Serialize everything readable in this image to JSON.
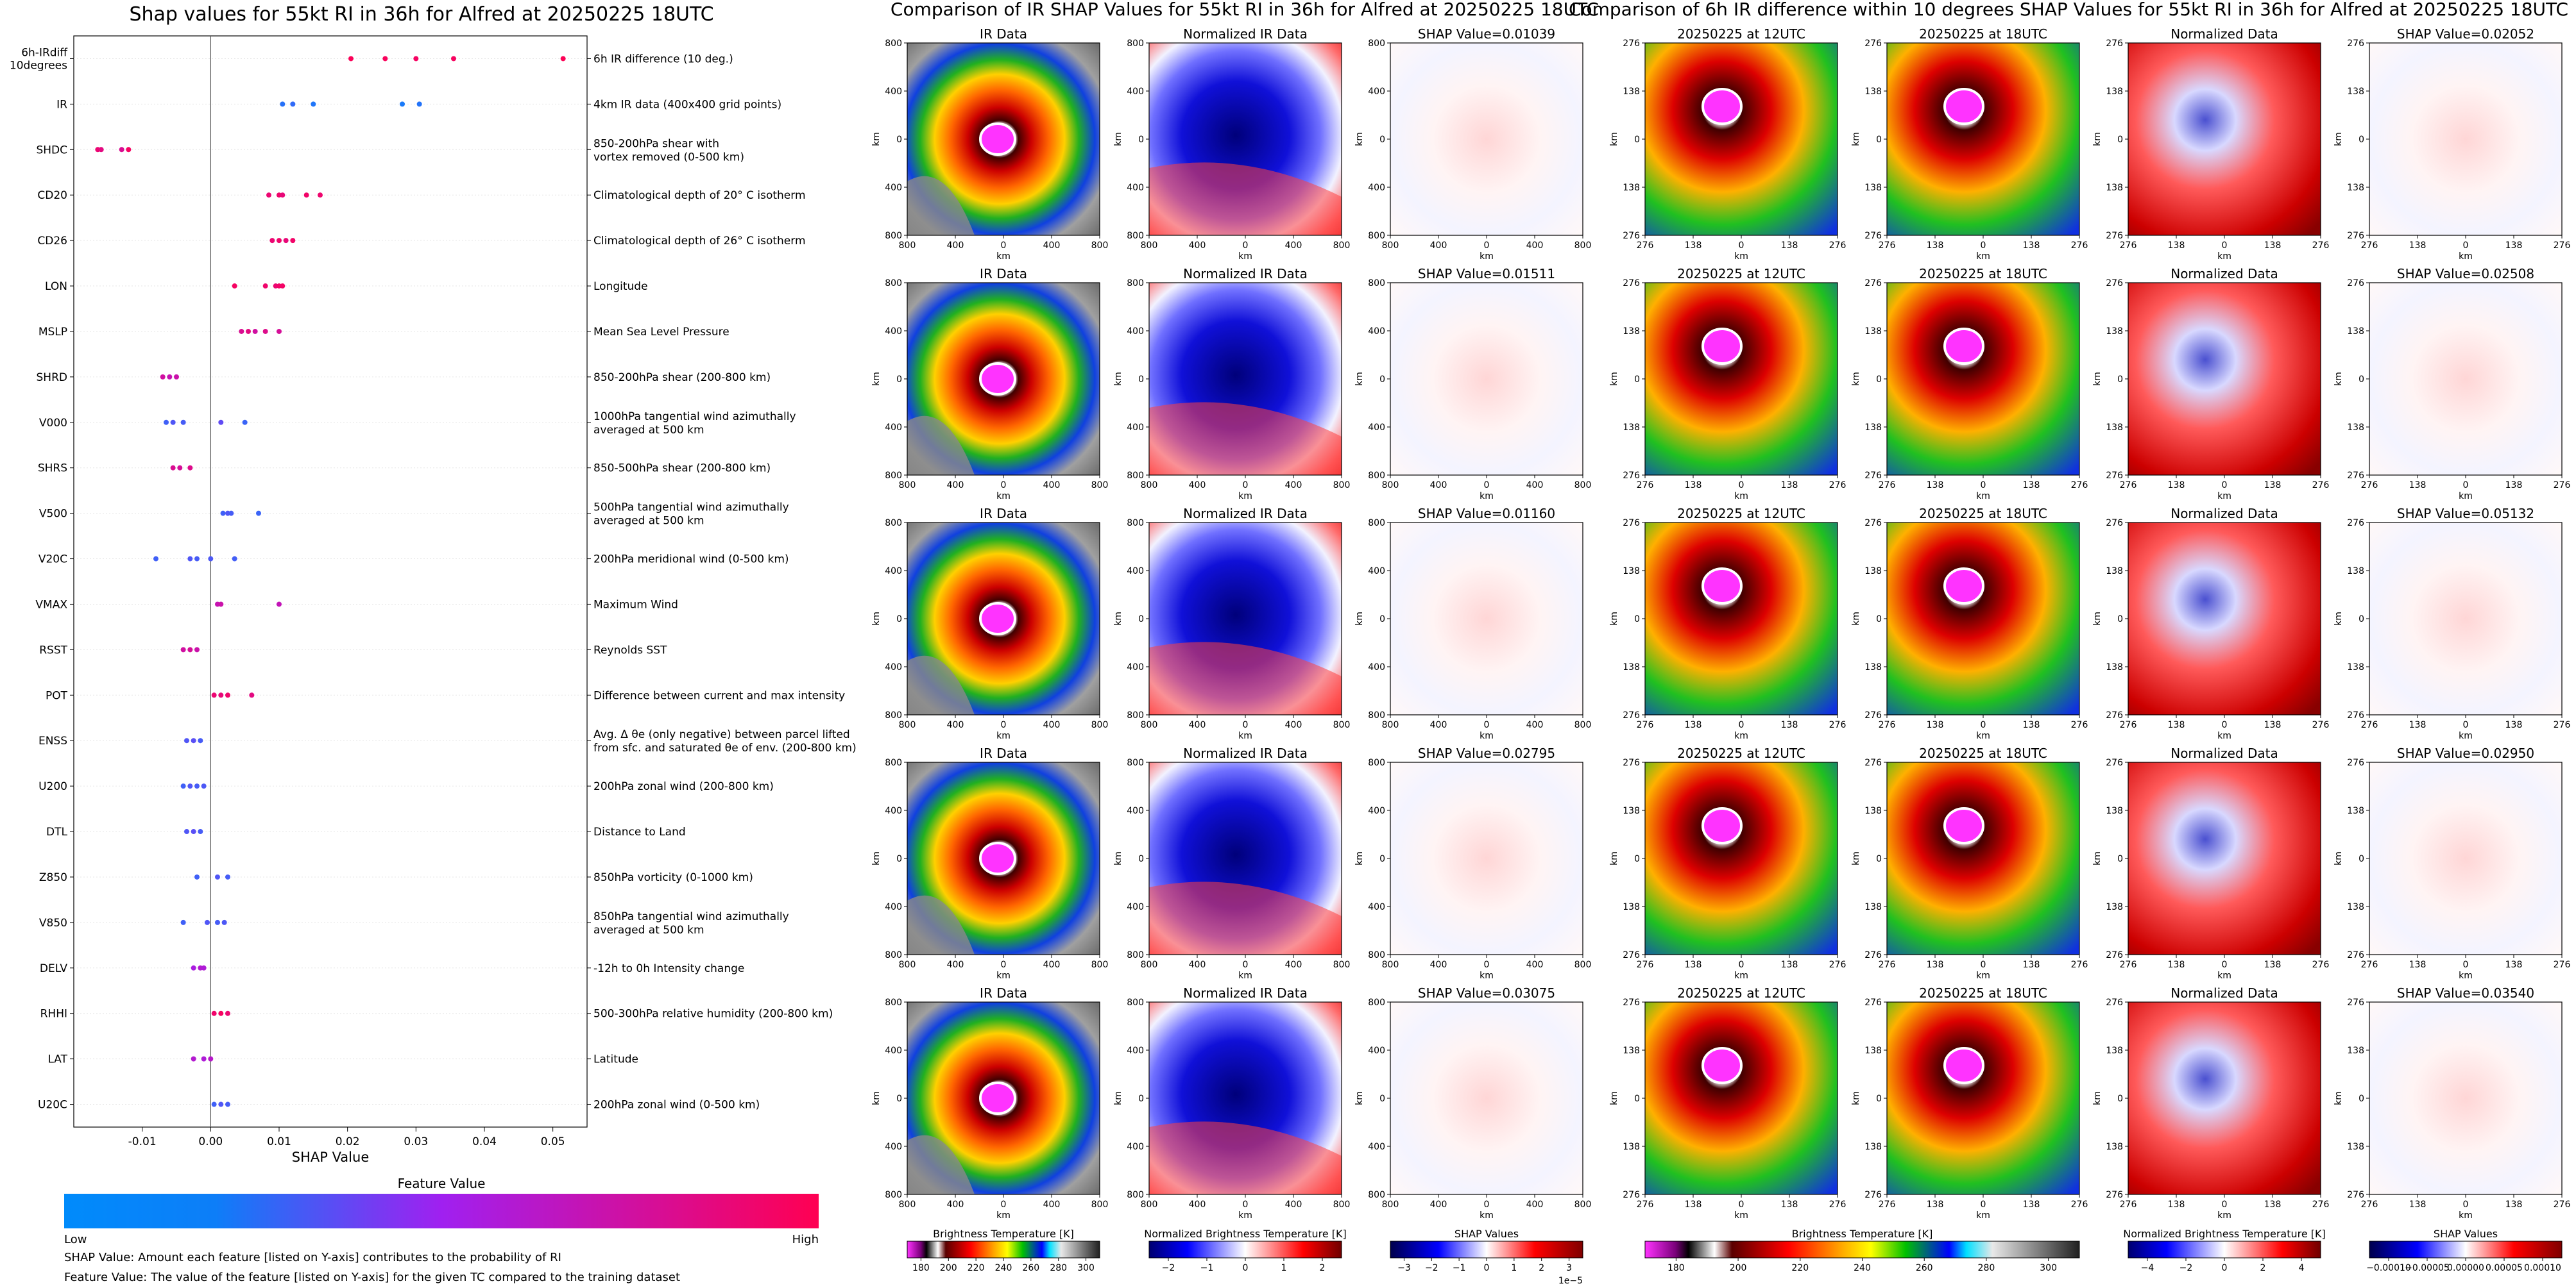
{
  "shap": {
    "title": "Shap values for 55kt RI in 36h for Alfred at 20250225 18UTC",
    "xlabel": "SHAP Value",
    "colorbar_title": "Feature Value",
    "colorbar_low": "Low",
    "colorbar_high": "High",
    "note1": "SHAP Value: Amount each feature [listed on Y-axis] contributes to the probability of RI",
    "note2": "Feature Value: The value of the feature [listed on Y-axis] for the given TC compared to the training dataset",
    "xticks": [
      "-0.01",
      "0.00",
      "0.01",
      "0.02",
      "0.03",
      "0.04",
      "0.05"
    ],
    "colors": {
      "low": "#008bfb",
      "mid": "#a020f0",
      "high": "#ff0052"
    }
  },
  "chart_data": [
    {
      "type": "scatter",
      "title": "Shap values for 55kt RI in 36h for Alfred at 20250225 18UTC",
      "xlabel": "SHAP Value",
      "xlim": [
        -0.02,
        0.055
      ],
      "features": [
        {
          "code": "6h-IRdiff\n10degrees",
          "desc": "6h IR difference (10 deg.)",
          "points": [
            [
              0.0205,
              0.98
            ],
            [
              0.0255,
              0.97
            ],
            [
              0.03,
              0.95
            ],
            [
              0.0355,
              0.96
            ],
            [
              0.0515,
              0.99
            ]
          ]
        },
        {
          "code": "IR",
          "desc": "4km IR data (400x400 grid points)",
          "points": [
            [
              0.0105,
              0.12
            ],
            [
              0.012,
              0.15
            ],
            [
              0.015,
              0.1
            ],
            [
              0.028,
              0.08
            ],
            [
              0.0305,
              0.11
            ]
          ]
        },
        {
          "code": "SHDC",
          "desc": "850-200hPa shear with\nvortex removed (0-500 km)",
          "points": [
            [
              -0.0165,
              0.9
            ],
            [
              -0.016,
              0.85
            ],
            [
              -0.013,
              0.8
            ],
            [
              -0.012,
              0.95
            ]
          ]
        },
        {
          "code": "CD20",
          "desc": "Climatological depth of 20° C isotherm",
          "points": [
            [
              0.0085,
              0.9
            ],
            [
              0.01,
              0.92
            ],
            [
              0.0105,
              0.88
            ],
            [
              0.014,
              0.93
            ],
            [
              0.016,
              0.91
            ]
          ]
        },
        {
          "code": "CD26",
          "desc": "Climatological depth of 26° C isotherm",
          "points": [
            [
              0.009,
              0.9
            ],
            [
              0.01,
              0.92
            ],
            [
              0.011,
              0.88
            ],
            [
              0.012,
              0.93
            ]
          ]
        },
        {
          "code": "LON",
          "desc": "Longitude",
          "points": [
            [
              0.0035,
              0.95
            ],
            [
              0.008,
              0.92
            ],
            [
              0.0095,
              0.9
            ],
            [
              0.01,
              0.93
            ],
            [
              0.0105,
              0.94
            ]
          ]
        },
        {
          "code": "MSLP",
          "desc": "Mean Sea Level Pressure",
          "points": [
            [
              0.0045,
              0.8
            ],
            [
              0.0055,
              0.85
            ],
            [
              0.0065,
              0.75
            ],
            [
              0.008,
              0.82
            ],
            [
              0.01,
              0.78
            ]
          ]
        },
        {
          "code": "SHRD",
          "desc": "850-200hPa shear (200-800 km)",
          "points": [
            [
              -0.007,
              0.75
            ],
            [
              -0.006,
              0.7
            ],
            [
              -0.005,
              0.72
            ]
          ]
        },
        {
          "code": "V000",
          "desc": "1000hPa tangential wind azimuthally\naveraged at 500 km",
          "points": [
            [
              -0.0065,
              0.2
            ],
            [
              -0.0055,
              0.25
            ],
            [
              -0.004,
              0.22
            ],
            [
              0.0015,
              0.3
            ],
            [
              0.005,
              0.18
            ]
          ]
        },
        {
          "code": "SHRS",
          "desc": "850-500hPa shear (200-800 km)",
          "points": [
            [
              -0.0055,
              0.8
            ],
            [
              -0.0045,
              0.78
            ],
            [
              -0.003,
              0.82
            ]
          ]
        },
        {
          "code": "V500",
          "desc": "500hPa tangential wind azimuthally\naveraged at 500 km",
          "points": [
            [
              0.0018,
              0.2
            ],
            [
              0.0025,
              0.25
            ],
            [
              0.003,
              0.22
            ],
            [
              0.007,
              0.18
            ]
          ]
        },
        {
          "code": "V20C",
          "desc": "200hPa meridional wind (0-500 km)",
          "points": [
            [
              -0.008,
              0.2
            ],
            [
              -0.003,
              0.25
            ],
            [
              -0.002,
              0.22
            ],
            [
              0.0,
              0.24
            ],
            [
              0.0035,
              0.21
            ]
          ]
        },
        {
          "code": "VMAX",
          "desc": "Maximum Wind",
          "points": [
            [
              0.001,
              0.7
            ],
            [
              0.0015,
              0.72
            ],
            [
              0.01,
              0.68
            ]
          ]
        },
        {
          "code": "RSST",
          "desc": "Reynolds SST",
          "points": [
            [
              -0.004,
              0.75
            ],
            [
              -0.003,
              0.78
            ],
            [
              -0.002,
              0.72
            ]
          ]
        },
        {
          "code": "POT",
          "desc": "Difference between current and max intensity",
          "points": [
            [
              0.0005,
              0.9
            ],
            [
              0.0015,
              0.88
            ],
            [
              0.0025,
              0.92
            ],
            [
              0.006,
              0.85
            ]
          ]
        },
        {
          "code": "ENSS",
          "desc": "Avg. Δ θe (only negative) between parcel lifted\nfrom sfc. and saturated θe of env. (200-800 km)",
          "points": [
            [
              -0.0035,
              0.25
            ],
            [
              -0.0025,
              0.28
            ],
            [
              -0.0015,
              0.22
            ]
          ]
        },
        {
          "code": "U200",
          "desc": "200hPa zonal wind (200-800 km)",
          "points": [
            [
              -0.004,
              0.2
            ],
            [
              -0.003,
              0.25
            ],
            [
              -0.002,
              0.22
            ],
            [
              -0.001,
              0.24
            ]
          ]
        },
        {
          "code": "DTL",
          "desc": "Distance to Land",
          "points": [
            [
              -0.0035,
              0.25
            ],
            [
              -0.0025,
              0.28
            ],
            [
              -0.0015,
              0.22
            ]
          ]
        },
        {
          "code": "Z850",
          "desc": "850hPa vorticity (0-1000 km)",
          "points": [
            [
              -0.002,
              0.2
            ],
            [
              0.001,
              0.25
            ],
            [
              0.0025,
              0.22
            ]
          ]
        },
        {
          "code": "V850",
          "desc": "850hPa tangential wind azimuthally\naveraged at 500 km",
          "points": [
            [
              -0.004,
              0.2
            ],
            [
              -0.0005,
              0.25
            ],
            [
              0.001,
              0.22
            ],
            [
              0.002,
              0.24
            ]
          ]
        },
        {
          "code": "DELV",
          "desc": "-12h to 0h Intensity change",
          "points": [
            [
              -0.0025,
              0.55
            ],
            [
              -0.0015,
              0.6
            ],
            [
              -0.001,
              0.58
            ]
          ]
        },
        {
          "code": "RHHI",
          "desc": "500-300hPa relative humidity (200-800 km)",
          "points": [
            [
              0.0005,
              0.92
            ],
            [
              0.0015,
              0.95
            ],
            [
              0.0025,
              0.9
            ]
          ]
        },
        {
          "code": "LAT",
          "desc": "Latitude",
          "points": [
            [
              -0.0025,
              0.6
            ],
            [
              -0.001,
              0.58
            ],
            [
              0.0,
              0.62
            ]
          ]
        },
        {
          "code": "U20C",
          "desc": "200hPa zonal wind (0-500 km)",
          "points": [
            [
              0.0005,
              0.2
            ],
            [
              0.0015,
              0.25
            ],
            [
              0.0025,
              0.22
            ]
          ]
        }
      ]
    },
    {
      "type": "heatmap",
      "title": "Comparison of IR SHAP Values for 55kt RI in 36h for Alfred at 20250225 18UTC",
      "panel_titles": [
        "IR Data",
        "Normalized IR Data"
      ],
      "shap_values": [
        "SHAP Value=0.01039",
        "SHAP Value=0.01511",
        "SHAP Value=0.01160",
        "SHAP Value=0.02795",
        "SHAP Value=0.03075"
      ],
      "axis_label": "km",
      "ticks": [
        "800",
        "400",
        "0",
        "400",
        "800"
      ],
      "colorbars": [
        {
          "label": "Brightness Temperature [K]",
          "ticks": [
            "180",
            "200",
            "220",
            "240",
            "260",
            "280",
            "300"
          ]
        },
        {
          "label": "Normalized Brightness Temperature [K]",
          "ticks": [
            "−2",
            "−1",
            "0",
            "1",
            "2"
          ]
        },
        {
          "label": "SHAP Values",
          "ticks": [
            "−3",
            "−2",
            "−1",
            "0",
            "1",
            "2",
            "3"
          ],
          "exponent": "1e−5"
        }
      ]
    },
    {
      "type": "heatmap",
      "title": "Comparison of 6h IR difference within 10 degrees SHAP Values for 55kt RI in 36h for Alfred at 20250225 18UTC",
      "panel_titles": [
        "20250225 at 12UTC",
        "20250225 at 18UTC",
        "Normalized Data"
      ],
      "shap_values": [
        "SHAP Value=0.02052",
        "SHAP Value=0.02508",
        "SHAP Value=0.05132",
        "SHAP Value=0.02950",
        "SHAP Value=0.03540"
      ],
      "axis_label": "km",
      "ticks": [
        "276",
        "138",
        "0",
        "138",
        "276"
      ],
      "colorbars": [
        {
          "label": "Brightness Temperature [K]",
          "ticks": [
            "180",
            "200",
            "220",
            "240",
            "260",
            "280",
            "300"
          ]
        },
        {
          "label": "Normalized Brightness Temperature [K]",
          "ticks": [
            "−4",
            "−2",
            "0",
            "2",
            "4"
          ]
        },
        {
          "label": "SHAP Values",
          "ticks": [
            "−0.00010",
            "−0.00005",
            "0.00000",
            "0.00005",
            "0.00010"
          ]
        }
      ]
    }
  ]
}
